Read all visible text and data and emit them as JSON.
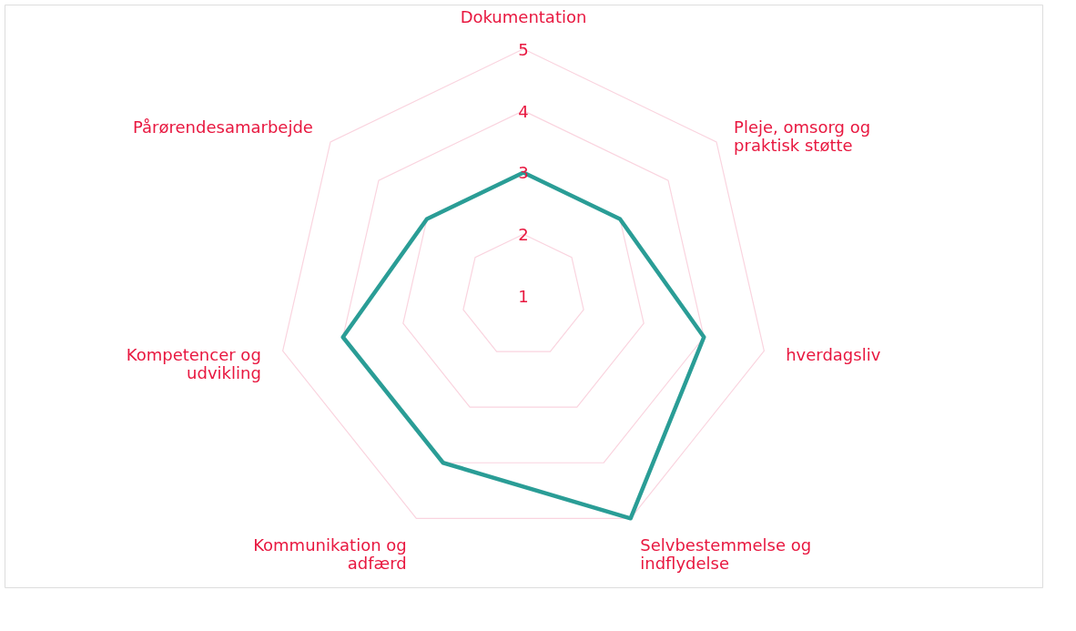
{
  "chart_data": {
    "type": "radar",
    "categories": [
      "Dokumentation",
      "Pleje, omsorg og praktisk støtte",
      "hverdagsliv",
      "Selvbestemmelse og indflydelse",
      "Kommunikation og adfærd",
      "Kompetencer og udvikling",
      "Pårørendesamarbejde"
    ],
    "series": [
      {
        "color": "#2a9d96",
        "values": [
          3,
          3,
          4,
          5,
          4,
          4,
          3
        ]
      }
    ],
    "ylim": [
      1,
      5
    ],
    "yticks": [
      1,
      2,
      3,
      4,
      5
    ],
    "grid": true,
    "marker": "none"
  }
}
